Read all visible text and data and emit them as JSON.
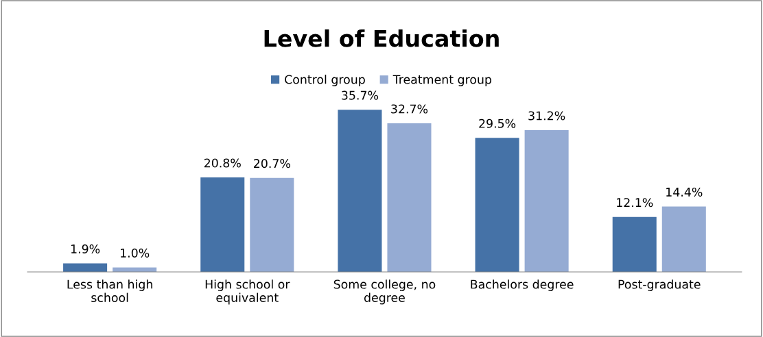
{
  "chart_data": {
    "type": "bar",
    "title": "Level of Education",
    "categories": [
      "Less than high\nschool",
      "High school or\nequivalent",
      "Some college, no\ndegree",
      "Bachelors degree",
      "Post-graduate"
    ],
    "series": [
      {
        "name": "Control group",
        "color": "#4572a7",
        "values": [
          1.9,
          20.8,
          35.7,
          29.5,
          12.1
        ],
        "value_labels": [
          "1.9%",
          "20.8%",
          "35.7%",
          "29.5%",
          "12.1%"
        ]
      },
      {
        "name": "Treatment group",
        "color": "#95abd3",
        "values": [
          1.0,
          20.7,
          32.7,
          31.2,
          14.4
        ],
        "value_labels": [
          "1.0%",
          "20.7%",
          "32.7%",
          "31.2%",
          "14.4%"
        ]
      }
    ],
    "legend": "top",
    "grid": false
  }
}
